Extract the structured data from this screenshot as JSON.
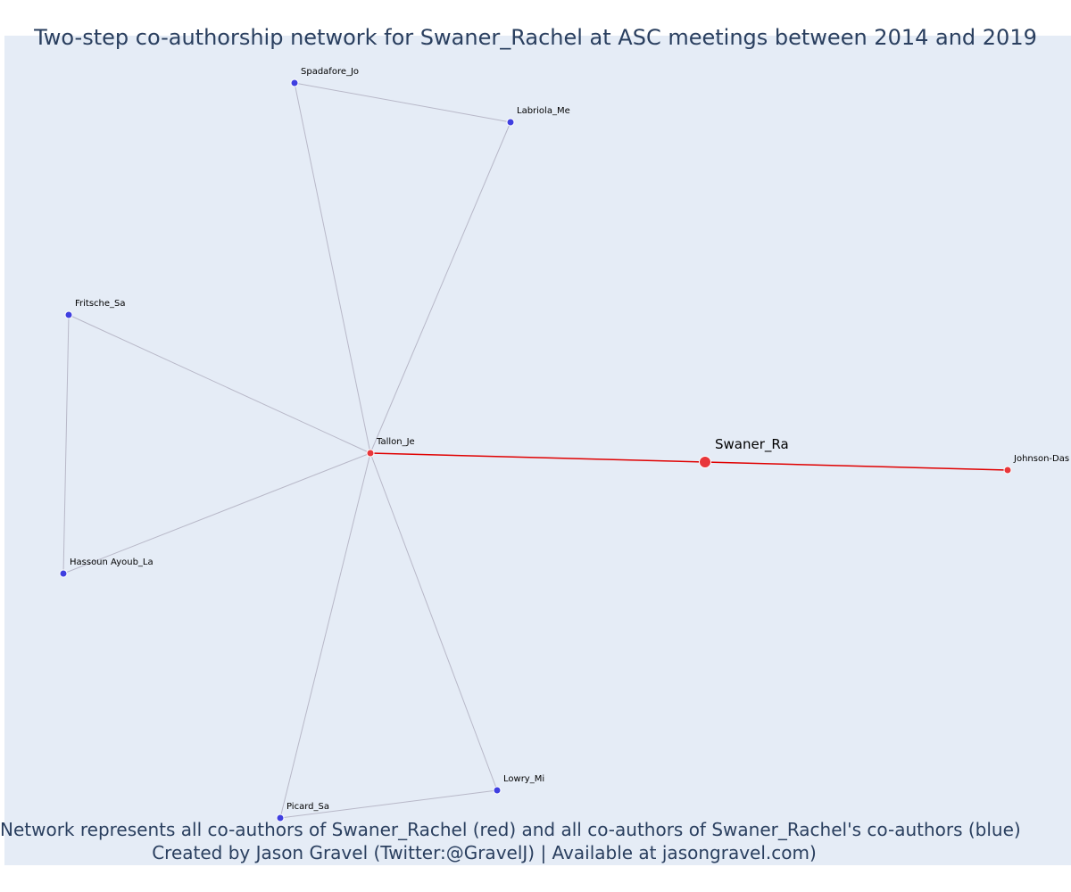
{
  "title": "Two-step co-authorship network for Swaner_Rachel at ASC meetings between 2014 and 2019",
  "captions": {
    "line1": "Network represents all co-authors of Swaner_Rachel (red) and all co-authors of Swaner_Rachel's co-authors (blue)",
    "line2": "Created by Jason Gravel (Twitter:@GravelJ) | Available at jasongravel.com)"
  },
  "colors": {
    "background": "#e5ecf6",
    "red": "#e8363a",
    "blue": "#3f3fe0",
    "edge_gray": "#b8b8c8",
    "edge_red": "#e00000",
    "text": "#2a3f5f"
  },
  "nodes": [
    {
      "id": "swaner_ra",
      "label": "Swaner_Ra",
      "group": "ego"
    },
    {
      "id": "tallon_je",
      "label": "Tallon_Je",
      "group": "coauthor"
    },
    {
      "id": "johnson_das",
      "label": "Johnson-Das",
      "group": "coauthor"
    },
    {
      "id": "spadafore_jo",
      "label": "Spadafore_Jo",
      "group": "second"
    },
    {
      "id": "labriola_me",
      "label": "Labriola_Me",
      "group": "second"
    },
    {
      "id": "fritsche_sa",
      "label": "Fritsche_Sa",
      "group": "second"
    },
    {
      "id": "hassoun_la",
      "label": "Hassoun Ayoub_La",
      "group": "second"
    },
    {
      "id": "lowry_mi",
      "label": "Lowry_Mi",
      "group": "second"
    },
    {
      "id": "picard_sa",
      "label": "Picard_Sa",
      "group": "second"
    }
  ],
  "edges": [
    {
      "source": "swaner_ra",
      "target": "tallon_je",
      "kind": "ego"
    },
    {
      "source": "swaner_ra",
      "target": "johnson_das",
      "kind": "ego"
    },
    {
      "source": "tallon_je",
      "target": "spadafore_jo",
      "kind": "other"
    },
    {
      "source": "tallon_je",
      "target": "labriola_me",
      "kind": "other"
    },
    {
      "source": "tallon_je",
      "target": "fritsche_sa",
      "kind": "other"
    },
    {
      "source": "tallon_je",
      "target": "hassoun_la",
      "kind": "other"
    },
    {
      "source": "tallon_je",
      "target": "lowry_mi",
      "kind": "other"
    },
    {
      "source": "tallon_je",
      "target": "picard_sa",
      "kind": "other"
    },
    {
      "source": "spadafore_jo",
      "target": "labriola_me",
      "kind": "other"
    },
    {
      "source": "fritsche_sa",
      "target": "hassoun_la",
      "kind": "other"
    },
    {
      "source": "lowry_mi",
      "target": "picard_sa",
      "kind": "other"
    }
  ]
}
